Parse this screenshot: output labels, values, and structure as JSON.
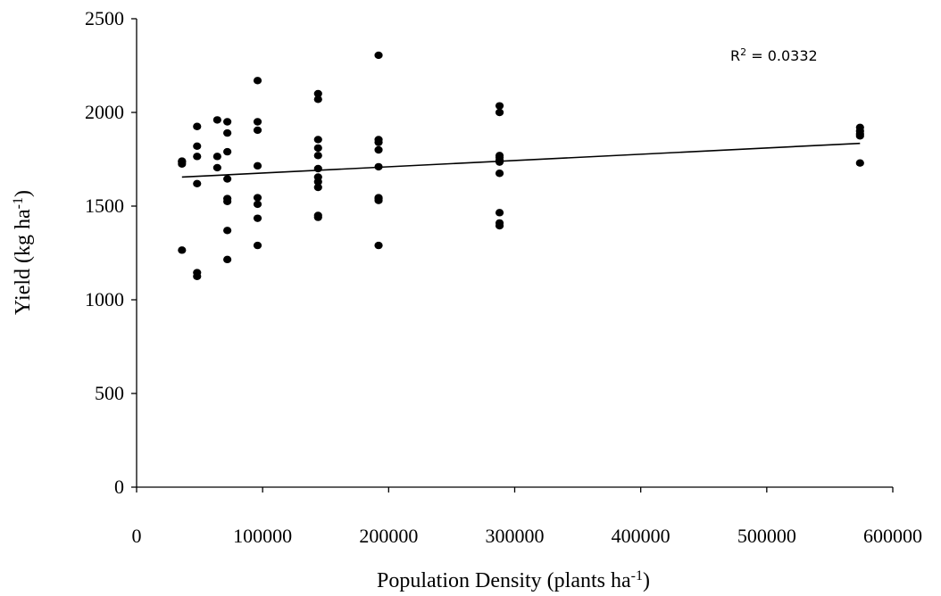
{
  "chart_data": {
    "type": "scatter",
    "title": "",
    "xlabel": "Population Density (plants ha",
    "xlabel_sup": "-1",
    "xlabel_end": ")",
    "ylabel": "Yield (kg ha",
    "ylabel_sup": "-1",
    "ylabel_end": ")",
    "xlim": [
      0,
      600000
    ],
    "ylim": [
      0,
      2500
    ],
    "xticks": [
      0,
      100000,
      200000,
      300000,
      400000,
      500000,
      600000
    ],
    "yticks": [
      0,
      500,
      1000,
      1500,
      2000,
      2500
    ],
    "grid": false,
    "legend": "none",
    "annotation": {
      "text_pre": "R",
      "text_sup": "2",
      "text_post": " = 0.0332"
    },
    "trendline": {
      "x": [
        36000,
        574000
      ],
      "y": [
        1655,
        1835
      ]
    },
    "points": [
      [
        36000,
        1740
      ],
      [
        36000,
        1725
      ],
      [
        36000,
        1735
      ],
      [
        36000,
        1265
      ],
      [
        48000,
        1925
      ],
      [
        48000,
        1820
      ],
      [
        48000,
        1765
      ],
      [
        48000,
        1620
      ],
      [
        48000,
        1145
      ],
      [
        48000,
        1125
      ],
      [
        64000,
        1960
      ],
      [
        64000,
        1765
      ],
      [
        64000,
        1705
      ],
      [
        72000,
        1950
      ],
      [
        72000,
        1890
      ],
      [
        72000,
        1790
      ],
      [
        72000,
        1645
      ],
      [
        72000,
        1540
      ],
      [
        72000,
        1525
      ],
      [
        72000,
        1370
      ],
      [
        72000,
        1215
      ],
      [
        96000,
        2170
      ],
      [
        96000,
        1950
      ],
      [
        96000,
        1905
      ],
      [
        96000,
        1715
      ],
      [
        96000,
        1545
      ],
      [
        96000,
        1510
      ],
      [
        96000,
        1435
      ],
      [
        96000,
        1290
      ],
      [
        144000,
        2100
      ],
      [
        144000,
        2070
      ],
      [
        144000,
        1855
      ],
      [
        144000,
        1810
      ],
      [
        144000,
        1770
      ],
      [
        144000,
        1700
      ],
      [
        144000,
        1655
      ],
      [
        144000,
        1630
      ],
      [
        144000,
        1600
      ],
      [
        144000,
        1450
      ],
      [
        144000,
        1440
      ],
      [
        192000,
        2305
      ],
      [
        192000,
        1855
      ],
      [
        192000,
        1840
      ],
      [
        192000,
        1800
      ],
      [
        192000,
        1710
      ],
      [
        192000,
        1545
      ],
      [
        192000,
        1540
      ],
      [
        192000,
        1530
      ],
      [
        192000,
        1290
      ],
      [
        288000,
        2035
      ],
      [
        288000,
        2000
      ],
      [
        288000,
        1770
      ],
      [
        288000,
        1760
      ],
      [
        288000,
        1745
      ],
      [
        288000,
        1735
      ],
      [
        288000,
        1675
      ],
      [
        288000,
        1465
      ],
      [
        288000,
        1410
      ],
      [
        288000,
        1395
      ],
      [
        574000,
        1920
      ],
      [
        574000,
        1900
      ],
      [
        574000,
        1885
      ],
      [
        574000,
        1875
      ],
      [
        574000,
        1730
      ]
    ]
  }
}
